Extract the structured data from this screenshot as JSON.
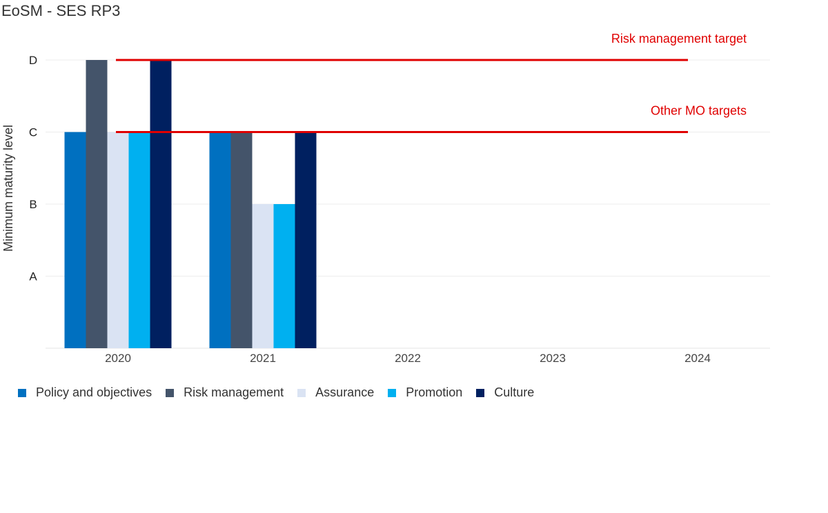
{
  "chart_data": {
    "type": "bar",
    "title": "EoSM - SES RP3",
    "ylabel": "Minimum maturity level",
    "xlabel": "",
    "categories": [
      "2020",
      "2021",
      "2022",
      "2023",
      "2024"
    ],
    "y_levels": [
      "A",
      "B",
      "C",
      "D"
    ],
    "ylim": [
      0,
      4
    ],
    "grid": true,
    "legend_position": "bottom-left",
    "series": [
      {
        "name": "Policy and objectives",
        "color": "#0070C0",
        "values": [
          "C",
          "C",
          null,
          null,
          null
        ]
      },
      {
        "name": "Risk management",
        "color": "#44546A",
        "values": [
          "D",
          "C",
          null,
          null,
          null
        ]
      },
      {
        "name": "Assurance",
        "color": "#DAE3F3",
        "values": [
          "C",
          "B",
          null,
          null,
          null
        ]
      },
      {
        "name": "Promotion",
        "color": "#00B0F0",
        "values": [
          "C",
          "B",
          null,
          null,
          null
        ]
      },
      {
        "name": "Culture",
        "color": "#002060",
        "values": [
          "D",
          "C",
          null,
          null,
          null
        ]
      }
    ],
    "target_lines": [
      {
        "label": "Risk management target",
        "level": "D",
        "color": "#E00000"
      },
      {
        "label": "Other MO targets",
        "level": "C",
        "color": "#E00000"
      }
    ]
  }
}
